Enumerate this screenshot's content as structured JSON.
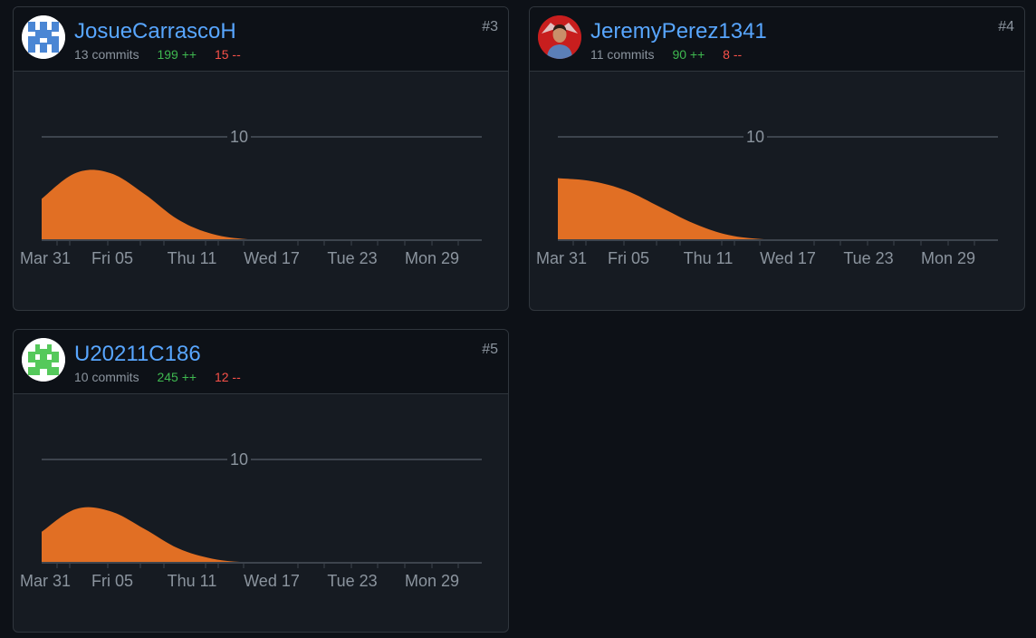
{
  "x_axis_labels": [
    "Mar 31",
    "Fri 05",
    "Thu 11",
    "Wed 17",
    "Tue 23",
    "Mon 29"
  ],
  "y_axis_labels": [
    "10"
  ],
  "area_color": "#e16f24",
  "contributors": [
    {
      "username": "JosueCarrascoH",
      "commits": "13 commits",
      "additions": "199 ++",
      "deletions": "15 --",
      "rank": "#3",
      "avatar": "identicon-blue",
      "avatar_color": "#4a86d4"
    },
    {
      "username": "JeremyPerez1341",
      "commits": "11 commits",
      "additions": "90 ++",
      "deletions": "8 --",
      "rank": "#4",
      "avatar": "profile-photo"
    },
    {
      "username": "U20211C186",
      "commits": "10 commits",
      "additions": "245 ++",
      "deletions": "12 --",
      "rank": "#5",
      "avatar": "identicon-green",
      "avatar_color": "#55c95b"
    }
  ],
  "chart_data": [
    {
      "type": "area",
      "x": [
        "Mar 31",
        "Fri 05",
        "Thu 11",
        "Wed 17",
        "Tue 23",
        "Mon 29"
      ],
      "series": [
        {
          "x": [
            0,
            1,
            2,
            3,
            4,
            5,
            6,
            7,
            8
          ],
          "values": [
            4,
            6.5,
            6.5,
            4.5,
            2,
            0.6,
            0.1,
            0,
            0
          ]
        }
      ],
      "yticks": [
        "10"
      ],
      "ylim": [
        0,
        12
      ]
    },
    {
      "type": "area",
      "x": [
        "Mar 31",
        "Fri 05",
        "Thu 11",
        "Wed 17",
        "Tue 23",
        "Mon 29"
      ],
      "series": [
        {
          "x": [
            0,
            1,
            2,
            3,
            4,
            5,
            6,
            7,
            8
          ],
          "values": [
            6,
            5.7,
            4.8,
            3.2,
            1.6,
            0.5,
            0.1,
            0,
            0
          ]
        }
      ],
      "yticks": [
        "10"
      ],
      "ylim": [
        0,
        12
      ]
    },
    {
      "type": "area",
      "x": [
        "Mar 31",
        "Fri 05",
        "Thu 11",
        "Wed 17",
        "Tue 23",
        "Mon 29"
      ],
      "series": [
        {
          "x": [
            0,
            1,
            2,
            3,
            4,
            5,
            6,
            7,
            8
          ],
          "values": [
            3,
            5.2,
            5,
            3.3,
            1.4,
            0.4,
            0.05,
            0,
            0
          ]
        }
      ],
      "yticks": [
        "10"
      ],
      "ylim": [
        0,
        12
      ]
    }
  ]
}
